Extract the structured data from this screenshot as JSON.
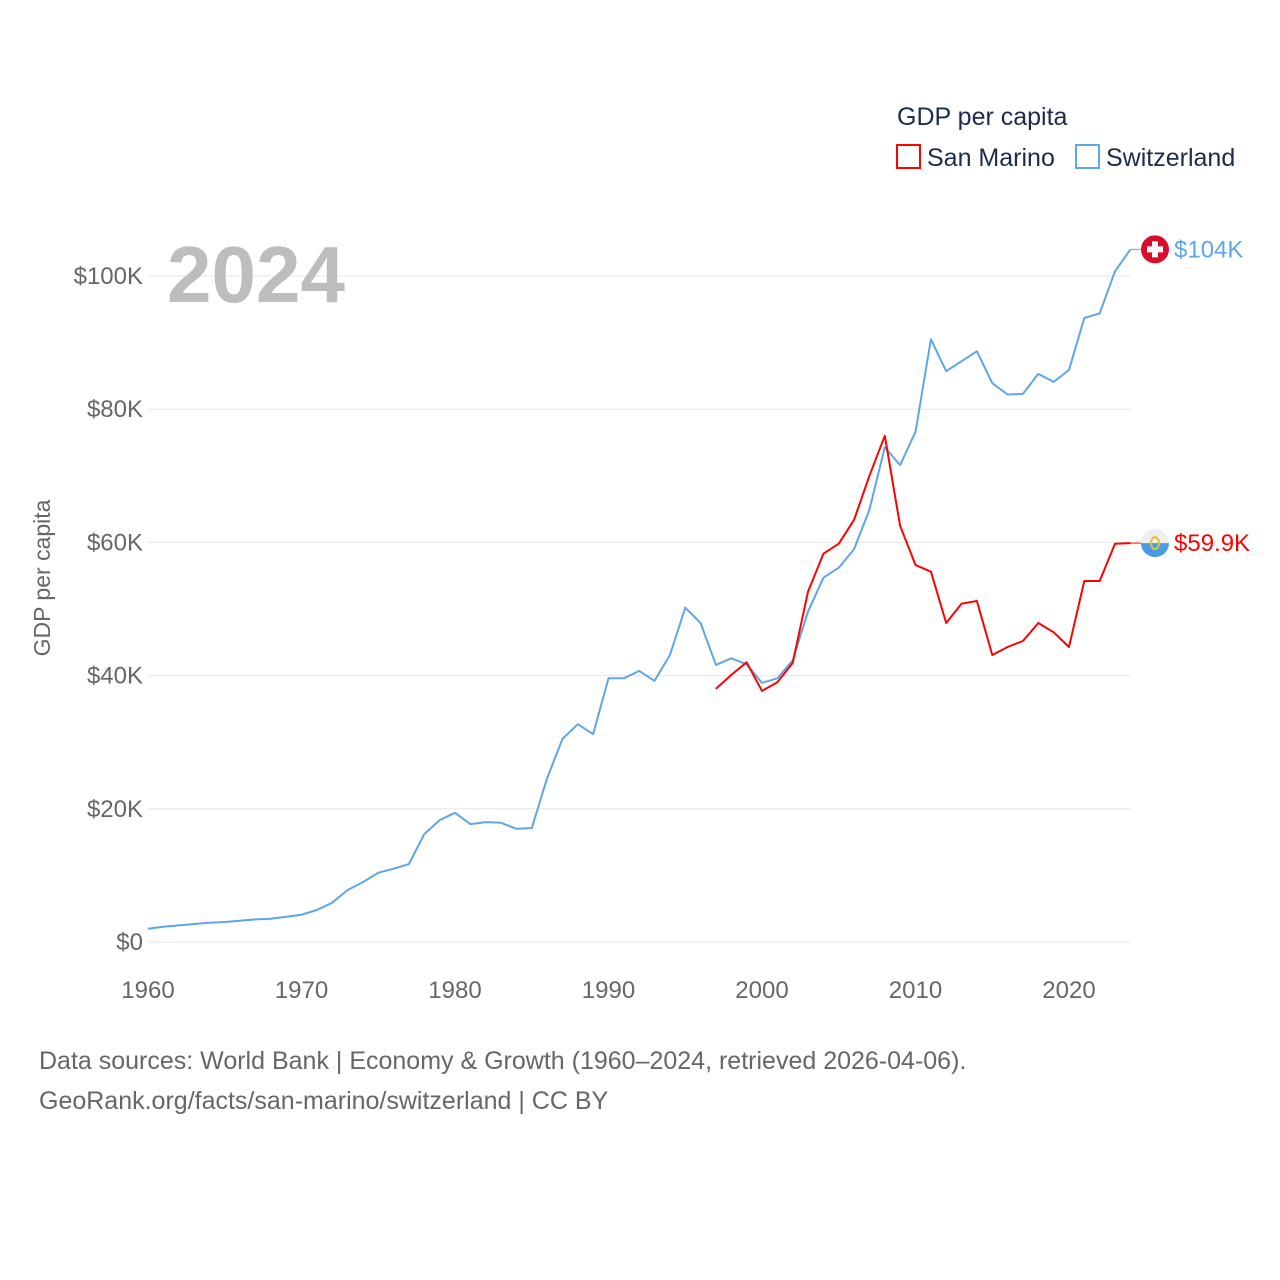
{
  "chart_data": {
    "type": "line",
    "title": "GDP per capita",
    "year_label": "2024",
    "ylabel": "GDP per capita",
    "xlabel": "",
    "xlim": [
      1960,
      2024
    ],
    "ylim": [
      0,
      110000
    ],
    "x_ticks": [
      1960,
      1970,
      1980,
      1990,
      2000,
      2010,
      2020
    ],
    "y_ticks": [
      {
        "value": 0,
        "label": "$0"
      },
      {
        "value": 20000,
        "label": "$20K"
      },
      {
        "value": 40000,
        "label": "$40K"
      },
      {
        "value": 60000,
        "label": "$60K"
      },
      {
        "value": 80000,
        "label": "$80K"
      },
      {
        "value": 100000,
        "label": "$100K"
      }
    ],
    "grid": true,
    "legend": {
      "title": "GDP per capita",
      "placement": "top-right"
    },
    "series": [
      {
        "name": "San Marino",
        "color": "#ff0000",
        "end_label": "$59.9K",
        "flag": "san-marino-flag",
        "x": [
          1997,
          1998,
          1999,
          2000,
          2001,
          2002,
          2003,
          2004,
          2005,
          2006,
          2007,
          2008,
          2009,
          2010,
          2011,
          2012,
          2013,
          2014,
          2015,
          2016,
          2017,
          2018,
          2019,
          2020,
          2021,
          2022,
          2023,
          2024
        ],
        "values": [
          38000,
          40100,
          42000,
          37700,
          39000,
          41900,
          52600,
          58300,
          59800,
          63400,
          70000,
          76000,
          62500,
          56600,
          55600,
          47900,
          50800,
          51200,
          43100,
          44300,
          45200,
          47900,
          46500,
          44300,
          54200,
          54200,
          59800,
          59900
        ]
      },
      {
        "name": "Switzerland",
        "color": "#5ea6e8",
        "end_label": "$104K",
        "flag": "switzerland-flag",
        "x": [
          1960,
          1961,
          1962,
          1963,
          1964,
          1965,
          1966,
          1967,
          1968,
          1969,
          1970,
          1971,
          1972,
          1973,
          1974,
          1975,
          1976,
          1977,
          1978,
          1979,
          1980,
          1981,
          1982,
          1983,
          1984,
          1985,
          1986,
          1987,
          1988,
          1989,
          1990,
          1991,
          1992,
          1993,
          1994,
          1995,
          1996,
          1997,
          1998,
          1999,
          2000,
          2001,
          2002,
          2003,
          2004,
          2005,
          2006,
          2007,
          2008,
          2009,
          2010,
          2011,
          2012,
          2013,
          2014,
          2015,
          2016,
          2017,
          2018,
          2019,
          2020,
          2021,
          2022,
          2023,
          2024
        ],
        "values": [
          2000,
          2300,
          2500,
          2700,
          2900,
          3000,
          3200,
          3400,
          3500,
          3800,
          4100,
          4800,
          5900,
          7800,
          9000,
          10400,
          11000,
          11700,
          16200,
          18300,
          19400,
          17700,
          18000,
          17900,
          17000,
          17100,
          24600,
          30500,
          32700,
          31200,
          39600,
          39600,
          40700,
          39200,
          43100,
          50200,
          47900,
          41600,
          42600,
          41700,
          38900,
          39600,
          42300,
          49600,
          54700,
          56200,
          59000,
          64900,
          74300,
          71600,
          76600,
          90500,
          85700,
          87200,
          88700,
          83900,
          82200,
          82300,
          85300,
          84100,
          85900,
          93700,
          94400,
          100700,
          104000
        ]
      }
    ]
  },
  "footer": {
    "line1": "Data sources: World Bank | Economy & Growth (1960–2024, retrieved 2026-04-06).",
    "line2": "GeoRank.org/facts/san-marino/switzerland | CC BY"
  }
}
